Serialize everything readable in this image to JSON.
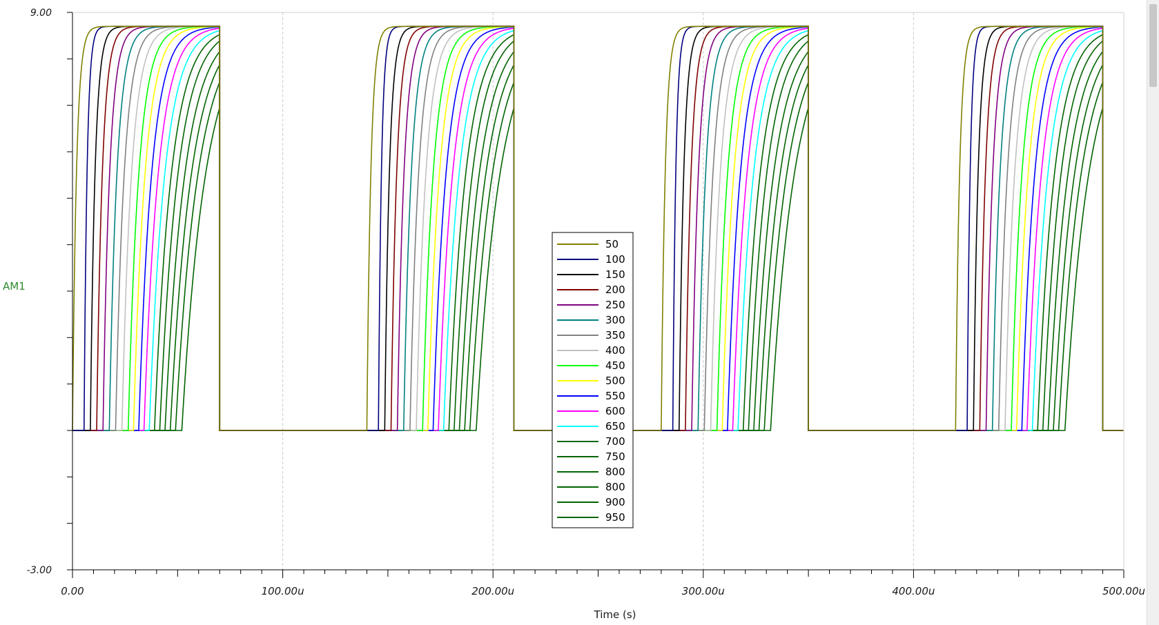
{
  "chart_data": {
    "type": "line",
    "title": "",
    "xlabel": "Time (s)",
    "ylabel": "AM1",
    "xlim": [
      0,
      500
    ],
    "ylim": [
      -3,
      9
    ],
    "x_ticks": [
      "0.00",
      "100.00u",
      "200.00u",
      "300.00u",
      "400.00u",
      "500.00u"
    ],
    "y_ticks": [
      "9.00",
      "-3.00"
    ],
    "grid": "vertical-dashed",
    "legend_position": "center",
    "pulse": {
      "period_us": 140,
      "high_duration_us": 70,
      "low_level": 0,
      "high_level": 8.7,
      "cycles_visible": 4
    },
    "series": [
      {
        "name": "50",
        "color": "#808000",
        "rise_delay_us": 0.0,
        "rise_time_us": 6.0
      },
      {
        "name": "100",
        "color": "#000080",
        "rise_delay_us": 5.5,
        "rise_time_us": 4.5
      },
      {
        "name": "150",
        "color": "#000000",
        "rise_delay_us": 8.5,
        "rise_time_us": 7.0
      },
      {
        "name": "200",
        "color": "#800000",
        "rise_delay_us": 11.5,
        "rise_time_us": 8.5
      },
      {
        "name": "250",
        "color": "#800080",
        "rise_delay_us": 14.5,
        "rise_time_us": 10.0
      },
      {
        "name": "300",
        "color": "#008080",
        "rise_delay_us": 17.5,
        "rise_time_us": 11.5
      },
      {
        "name": "350",
        "color": "#808080",
        "rise_delay_us": 20.5,
        "rise_time_us": 13.0
      },
      {
        "name": "400",
        "color": "#c0c0c0",
        "rise_delay_us": 23.5,
        "rise_time_us": 14.5
      },
      {
        "name": "450",
        "color": "#00ff00",
        "rise_delay_us": 26.5,
        "rise_time_us": 16.0
      },
      {
        "name": "500",
        "color": "#ffff00",
        "rise_delay_us": 29.0,
        "rise_time_us": 17.5
      },
      {
        "name": "550",
        "color": "#0000ff",
        "rise_delay_us": 31.5,
        "rise_time_us": 19.5
      },
      {
        "name": "600",
        "color": "#ff00ff",
        "rise_delay_us": 34.0,
        "rise_time_us": 21.5
      },
      {
        "name": "650",
        "color": "#00ffff",
        "rise_delay_us": 36.5,
        "rise_time_us": 23.5
      },
      {
        "name": "700",
        "color": "#006400",
        "rise_delay_us": 39.0,
        "rise_time_us": 25.5
      },
      {
        "name": "750",
        "color": "#006400",
        "rise_delay_us": 41.5,
        "rise_time_us": 27.5
      },
      {
        "name": "800",
        "color": "#006400",
        "rise_delay_us": 44.0,
        "rise_time_us": 30.0
      },
      {
        "name": "800",
        "color": "#006400",
        "rise_delay_us": 46.5,
        "rise_time_us": 32.0
      },
      {
        "name": "900",
        "color": "#006400",
        "rise_delay_us": 49.0,
        "rise_time_us": 34.0
      },
      {
        "name": "950",
        "color": "#006400",
        "rise_delay_us": 52.0,
        "rise_time_us": 36.0
      }
    ]
  }
}
